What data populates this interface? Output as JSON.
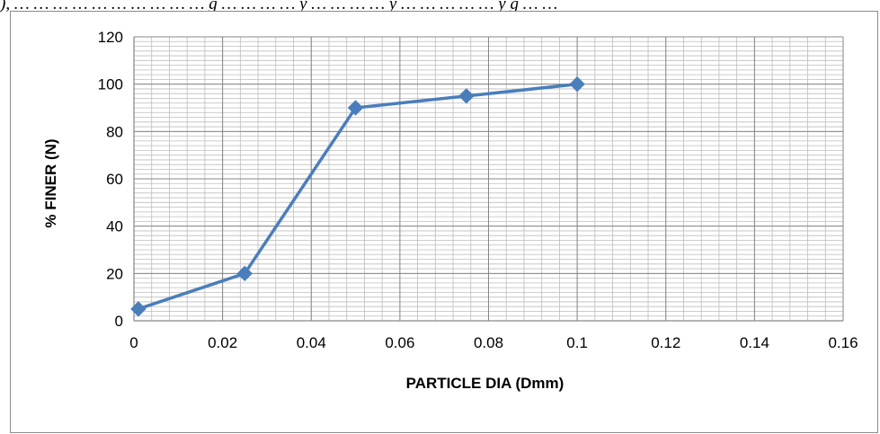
{
  "caption": "), … … … … … … … … … … g … … … … y … … … … y … … … … … y g … …",
  "chart_data": {
    "type": "line",
    "title": "",
    "xlabel": "PARTICLE DIA (Dmm)",
    "ylabel": "% FINER (N)",
    "xlim": [
      0,
      0.16
    ],
    "ylim": [
      0,
      120
    ],
    "x_ticks": [
      0,
      0.02,
      0.04,
      0.06,
      0.08,
      0.1,
      0.12,
      0.14,
      0.16
    ],
    "y_ticks": [
      0,
      20,
      40,
      60,
      80,
      100,
      120
    ],
    "grid": true,
    "legend": "none",
    "series": [
      {
        "x": [
          0.001,
          0.025,
          0.05,
          0.075,
          0.1
        ],
        "y": [
          5,
          20,
          90,
          95,
          100
        ],
        "marker": "diamond",
        "color": "#4a7ebb"
      }
    ]
  }
}
